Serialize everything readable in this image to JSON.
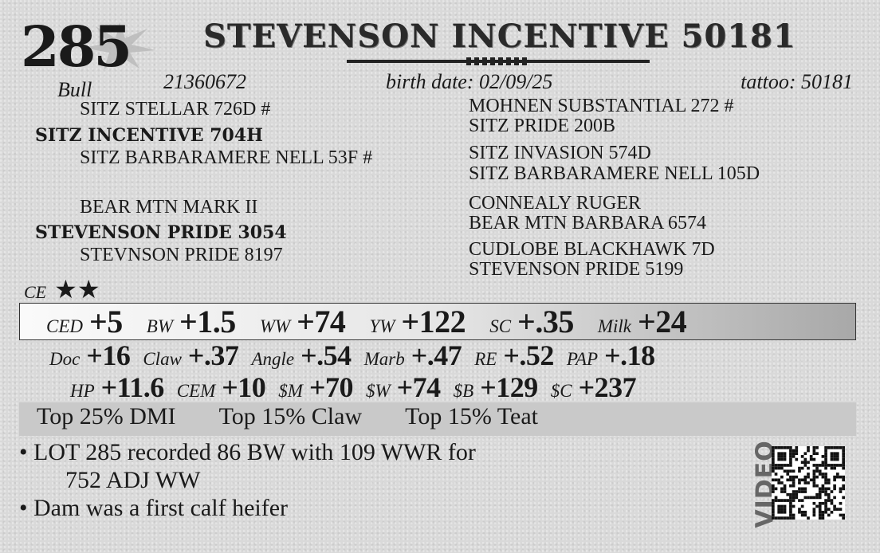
{
  "lot": {
    "number": "285",
    "sex": "Bull"
  },
  "title": "STEVENSON INCENTIVE 50181",
  "registration": "21360672",
  "birth_date": "birth date:  02/09/25",
  "tattoo": "tattoo: 50181",
  "pedigree": {
    "sire_sire": "SITZ STELLAR 726D #",
    "sire": "SITZ INCENTIVE 704H",
    "sire_dam": "SITZ BARBARAMERE NELL 53F #",
    "dam_sire": "BEAR MTN MARK II",
    "dam": "STEVENSON PRIDE 3054",
    "dam_dam": "STEVNSON PRIDE 8197",
    "right": [
      "MOHNEN SUBSTANTIAL 272 #",
      "SITZ PRIDE 200B",
      "SITZ INVASION 574D",
      "SITZ BARBARAMERE NELL 105D",
      "CONNEALY RUGER",
      "BEAR MTN BARBARA 6574",
      "CUDLOBE BLACKHAWK 7D",
      "STEVENSON PRIDE 5199"
    ]
  },
  "calving_ease": {
    "label": "CE",
    "stars": "★★"
  },
  "epds_row1": [
    {
      "label": "CED",
      "value": "+5"
    },
    {
      "label": "BW",
      "value": "+1.5"
    },
    {
      "label": "WW",
      "value": "+74"
    },
    {
      "label": "YW",
      "value": "+122"
    },
    {
      "label": "SC",
      "value": "+.35"
    },
    {
      "label": "Milk",
      "value": "+24"
    }
  ],
  "epds_row2": [
    {
      "label": "Doc",
      "value": "+16"
    },
    {
      "label": "Claw",
      "value": "+.37"
    },
    {
      "label": "Angle",
      "value": "+.54"
    },
    {
      "label": "Marb",
      "value": "+.47"
    },
    {
      "label": "RE",
      "value": "+.52"
    },
    {
      "label": "PAP",
      "value": "+.18"
    }
  ],
  "epds_row3": [
    {
      "label": "HP",
      "value": "+11.6"
    },
    {
      "label": "CEM",
      "value": "+10"
    },
    {
      "label": "$M",
      "value": "+70"
    },
    {
      "label": "$W",
      "value": "+74"
    },
    {
      "label": "$B",
      "value": "+129"
    },
    {
      "label": "$C",
      "value": "+237"
    }
  ],
  "top_ranks": [
    "Top 25% DMI",
    "Top 15% Claw",
    "Top 15% Teat"
  ],
  "notes": [
    "• LOT 285 recorded 86 BW with 109 WWR for",
    "752 ADJ WW",
    "• Dam was a first calf heifer"
  ],
  "video_label": "VIDEO"
}
